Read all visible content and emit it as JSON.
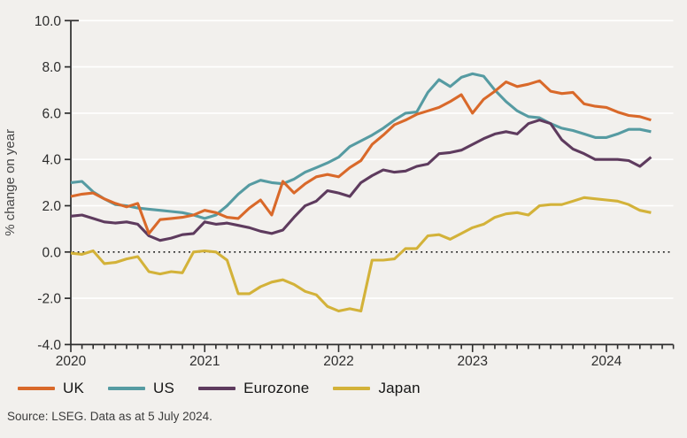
{
  "figure": {
    "background": "#f2f0ed",
    "y_axis_title": "% change on year",
    "y_tick_labels": [
      "10.0",
      "8.0",
      "6.0",
      "4.0",
      "2.0",
      "0.0",
      "-2.0",
      "-4.0"
    ],
    "y_tick_values": [
      10,
      8,
      6,
      4,
      2,
      0,
      -2,
      -4
    ],
    "x_tick_labels": [
      "2020",
      "2021",
      "2022",
      "2023",
      "2024"
    ],
    "x_tick_month_index": [
      0,
      12,
      24,
      36,
      48
    ],
    "grid_color": "#ffffff",
    "axis_color": "#2d2d2d",
    "zero_line_color": "#1a1a1a"
  },
  "legend": {
    "items": [
      {
        "label": "UK",
        "color": "#d9692a"
      },
      {
        "label": "US",
        "color": "#569ba2"
      },
      {
        "label": "Eurozone",
        "color": "#5e3b5e"
      },
      {
        "label": "Japan",
        "color": "#d3b239"
      }
    ]
  },
  "source_note": "Source: LSEG. Data as at 5 July 2024.",
  "chart_data": {
    "type": "line",
    "title": "",
    "xlabel": "",
    "ylabel": "% change on year",
    "ylim": [
      -4,
      10
    ],
    "x_frequency": "monthly",
    "x_axis_span": [
      "2020-01",
      "2024-07"
    ],
    "grid": "horizontal white gridlines at ticks",
    "zero_line": "black dotted",
    "legend_position": "bottom-left",
    "draw_order": [
      1,
      2,
      0,
      3
    ],
    "x": [
      "2020-01",
      "2020-02",
      "2020-03",
      "2020-04",
      "2020-05",
      "2020-06",
      "2020-07",
      "2020-08",
      "2020-09",
      "2020-10",
      "2020-11",
      "2020-12",
      "2021-01",
      "2021-02",
      "2021-03",
      "2021-04",
      "2021-05",
      "2021-06",
      "2021-07",
      "2021-08",
      "2021-09",
      "2021-10",
      "2021-11",
      "2021-12",
      "2022-01",
      "2022-02",
      "2022-03",
      "2022-04",
      "2022-05",
      "2022-06",
      "2022-07",
      "2022-08",
      "2022-09",
      "2022-10",
      "2022-11",
      "2022-12",
      "2023-01",
      "2023-02",
      "2023-03",
      "2023-04",
      "2023-05",
      "2023-06",
      "2023-07",
      "2023-08",
      "2023-09",
      "2023-10",
      "2023-11",
      "2023-12",
      "2024-01",
      "2024-02",
      "2024-03",
      "2024-04",
      "2024-05"
    ],
    "series": [
      {
        "name": "UK",
        "color": "#d9692a",
        "values": [
          2.4,
          2.5,
          2.55,
          2.3,
          2.1,
          1.95,
          2.1,
          0.8,
          1.4,
          1.45,
          1.5,
          1.6,
          1.8,
          1.7,
          1.5,
          1.45,
          1.9,
          2.25,
          1.6,
          3.05,
          2.55,
          2.95,
          3.25,
          3.35,
          3.25,
          3.65,
          3.95,
          4.65,
          5.05,
          5.5,
          5.7,
          5.95,
          6.1,
          6.25,
          6.5,
          6.8,
          6.0,
          6.6,
          6.95,
          7.35,
          7.15,
          7.25,
          7.4,
          6.95,
          6.85,
          6.9,
          6.4,
          6.3,
          6.25,
          6.05,
          5.9,
          5.85,
          5.7
        ]
      },
      {
        "name": "US",
        "color": "#569ba2",
        "values": [
          3.0,
          3.05,
          2.6,
          2.3,
          2.05,
          2.0,
          1.9,
          1.85,
          1.8,
          1.75,
          1.7,
          1.6,
          1.45,
          1.6,
          2.0,
          2.5,
          2.9,
          3.1,
          3.0,
          2.95,
          3.15,
          3.45,
          3.65,
          3.85,
          4.1,
          4.55,
          4.8,
          5.05,
          5.35,
          5.7,
          6.0,
          6.05,
          6.9,
          7.45,
          7.15,
          7.55,
          7.7,
          7.6,
          7.0,
          6.5,
          6.1,
          5.85,
          5.8,
          5.55,
          5.35,
          5.25,
          5.1,
          4.95,
          4.95,
          5.1,
          5.3,
          5.3,
          5.2
        ]
      },
      {
        "name": "Eurozone",
        "color": "#5e3b5e",
        "values": [
          1.55,
          1.6,
          1.45,
          1.3,
          1.25,
          1.3,
          1.2,
          0.7,
          0.5,
          0.6,
          0.75,
          0.8,
          1.3,
          1.2,
          1.25,
          1.15,
          1.05,
          0.9,
          0.8,
          0.95,
          1.5,
          2.0,
          2.2,
          2.65,
          2.55,
          2.4,
          3.0,
          3.3,
          3.55,
          3.45,
          3.5,
          3.7,
          3.8,
          4.25,
          4.3,
          4.4,
          4.65,
          4.9,
          5.1,
          5.2,
          5.1,
          5.55,
          5.7,
          5.55,
          4.85,
          4.45,
          4.25,
          4.0,
          4.0,
          4.0,
          3.95,
          3.7,
          4.1
        ]
      },
      {
        "name": "Japan",
        "color": "#d3b239",
        "values": [
          -0.05,
          -0.1,
          0.05,
          -0.5,
          -0.45,
          -0.3,
          -0.2,
          -0.85,
          -0.95,
          -0.85,
          -0.9,
          0.0,
          0.05,
          0.0,
          -0.35,
          -1.8,
          -1.8,
          -1.5,
          -1.3,
          -1.2,
          -1.4,
          -1.7,
          -1.85,
          -2.35,
          -2.55,
          -2.45,
          -2.55,
          -0.35,
          -0.35,
          -0.3,
          0.15,
          0.15,
          0.7,
          0.75,
          0.55,
          0.8,
          1.05,
          1.2,
          1.5,
          1.65,
          1.7,
          1.6,
          2.0,
          2.05,
          2.05,
          2.2,
          2.35,
          2.3,
          2.25,
          2.2,
          2.05,
          1.8,
          1.7
        ]
      }
    ]
  }
}
